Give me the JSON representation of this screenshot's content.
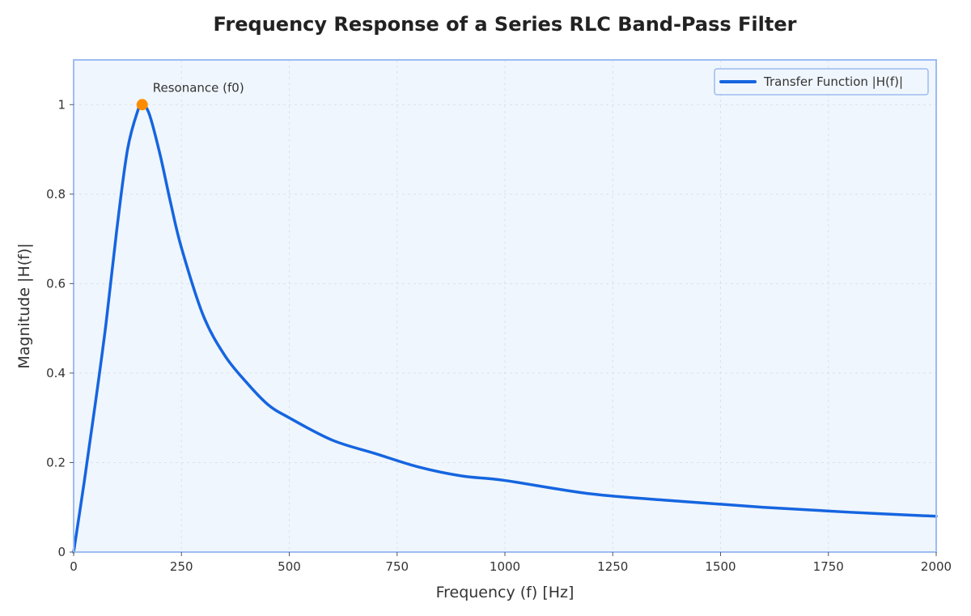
{
  "chart_data": {
    "type": "line",
    "title": "Frequency Response of a Series RLC Band-Pass Filter",
    "xlabel": "Frequency (f) [Hz]",
    "ylabel": "Magnitude |H(f)|",
    "xlim": [
      0,
      2000
    ],
    "ylim": [
      0,
      1.1
    ],
    "x_ticks": [
      0,
      250,
      500,
      750,
      1000,
      1250,
      1500,
      1750,
      2000
    ],
    "x_tick_labels": [
      "0",
      "250",
      "500",
      "750",
      "1000",
      "1250",
      "1500",
      "1750",
      "2000"
    ],
    "y_ticks": [
      0,
      0.2,
      0.4,
      0.6,
      0.8,
      1
    ],
    "y_tick_labels": [
      "0",
      "0.2",
      "0.4",
      "0.6",
      "0.8",
      "1"
    ],
    "grid": true,
    "legend_position": "top-right",
    "series": [
      {
        "name": "Transfer Function |H(f)|",
        "color": "#1565e0",
        "x": [
          0,
          25,
          50,
          75,
          100,
          125,
          150,
          159,
          175,
          200,
          225,
          250,
          300,
          350,
          400,
          450,
          500,
          600,
          700,
          800,
          900,
          1000,
          1200,
          1400,
          1600,
          1800,
          2000
        ],
        "y": [
          0,
          0.16,
          0.33,
          0.51,
          0.72,
          0.9,
          0.99,
          1.0,
          0.98,
          0.89,
          0.78,
          0.68,
          0.53,
          0.44,
          0.38,
          0.33,
          0.3,
          0.25,
          0.22,
          0.19,
          0.17,
          0.16,
          0.13,
          0.114,
          0.1,
          0.089,
          0.08
        ]
      }
    ],
    "annotations": [
      {
        "text": "Resonance (f0)",
        "x": 159,
        "y": 1.0,
        "marker_color": "#ff8c00"
      }
    ]
  },
  "colors": {
    "plot_background": "#f0f6fd",
    "plot_border": "#9cbcf2",
    "grid": "#d8e2ee",
    "line": "#1565e0",
    "marker": "#ff8c00"
  }
}
